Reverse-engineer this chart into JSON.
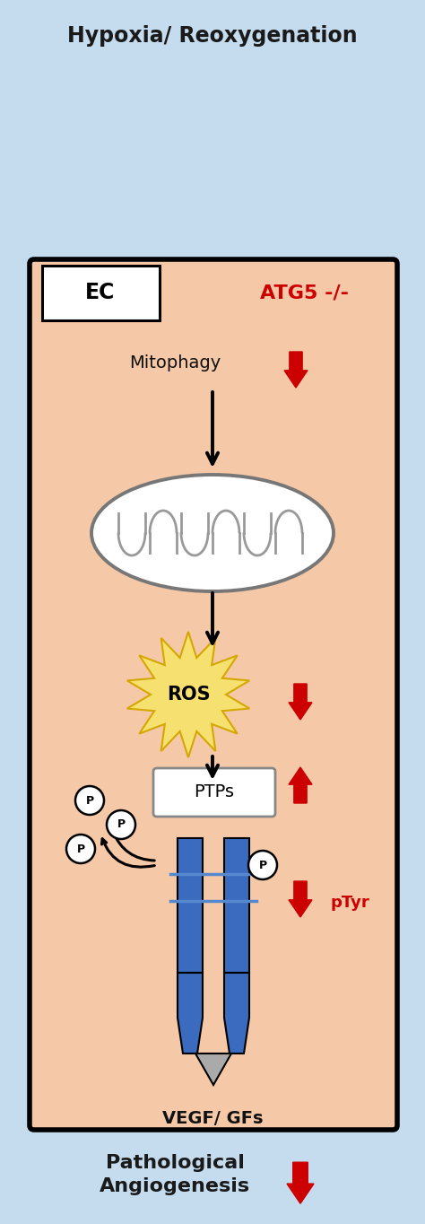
{
  "bg_color": "#c5dcef",
  "cell_color": "#f5c9a8",
  "title": "Hypoxia/ Reoxygenation",
  "title_fontsize": 17,
  "ec_label": "EC",
  "atg_label": "ATG5 -/-",
  "mitophagy_label": "Mitophagy",
  "ros_label": "ROS",
  "ptps_label": "PTPs",
  "ptyp_label": "pTyr",
  "vegf_label": "VEGF/ GFs",
  "path_line1": "Pathological",
  "path_line2": "Angiogenesis",
  "red_color": "#cc0000",
  "black_color": "#111111",
  "dark_color": "#1a1a1a",
  "yellow_star_fill": "#f5e070",
  "yellow_star_edge": "#d4a800",
  "blue_bar_color": "#3a6bbf",
  "gray_tri": "#999999",
  "white": "#ffffff"
}
